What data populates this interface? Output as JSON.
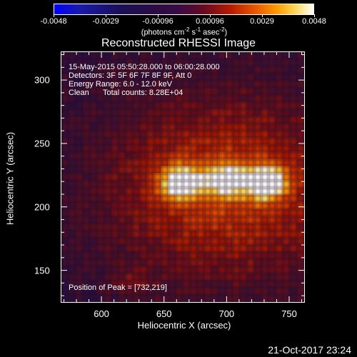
{
  "colorbar": {
    "ticks": [
      "-0.0048",
      "-0.0029",
      "-0.00096",
      "0.00096",
      "0.0029",
      "0.0048"
    ],
    "units_text": "(photons cm",
    "units_sup1": "-2",
    "units_mid1": " s",
    "units_sup2": "-1",
    "units_mid2": " asec",
    "units_sup3": "-2",
    "units_end": ")",
    "colors": [
      "#0000ff",
      "#1b0f5a",
      "#3a0b43",
      "#b51c00",
      "#ff9c00",
      "#ffffff"
    ]
  },
  "title": "Reconstructed RHESSI Image",
  "annotations": {
    "time": "15-May-2015 05:50:28.000 to 06:00:28.000",
    "detectors": "Detectors: 3F 5F 6F 7F 8F 9F, Att 0",
    "energy": "Energy Range: 6.0 - 12.0 keV",
    "clean": "Clean",
    "counts": "Total counts: 8.28E+04",
    "peak": "Position of Peak = [732,219]"
  },
  "axes": {
    "xlabel": "Heliocentric X (arcsec)",
    "ylabel": "Heliocentric Y (arcsec)",
    "xticks": [
      "600",
      "650",
      "700",
      "750"
    ],
    "yticks": [
      "300",
      "250",
      "200",
      "150"
    ],
    "xlim": [
      568,
      762
    ],
    "ylim": [
      125,
      322
    ]
  },
  "footer": {
    "timestamp": "21-Oct-2017 23:24"
  },
  "chart_data": {
    "type": "heatmap",
    "title": "Reconstructed RHESSI Image",
    "xlabel": "Heliocentric X (arcsec)",
    "ylabel": "Heliocentric Y (arcsec)",
    "xlim": [
      568,
      762
    ],
    "ylim": [
      125,
      322
    ],
    "color_range": [
      -0.0048,
      0.0048
    ],
    "sources": [
      {
        "x": 664,
        "y": 219,
        "intensity": 0.0048
      },
      {
        "x": 700,
        "y": 221,
        "intensity": 0.0035
      },
      {
        "x": 732,
        "y": 219,
        "intensity": 0.0048
      }
    ],
    "peak": [
      732,
      219
    ]
  }
}
